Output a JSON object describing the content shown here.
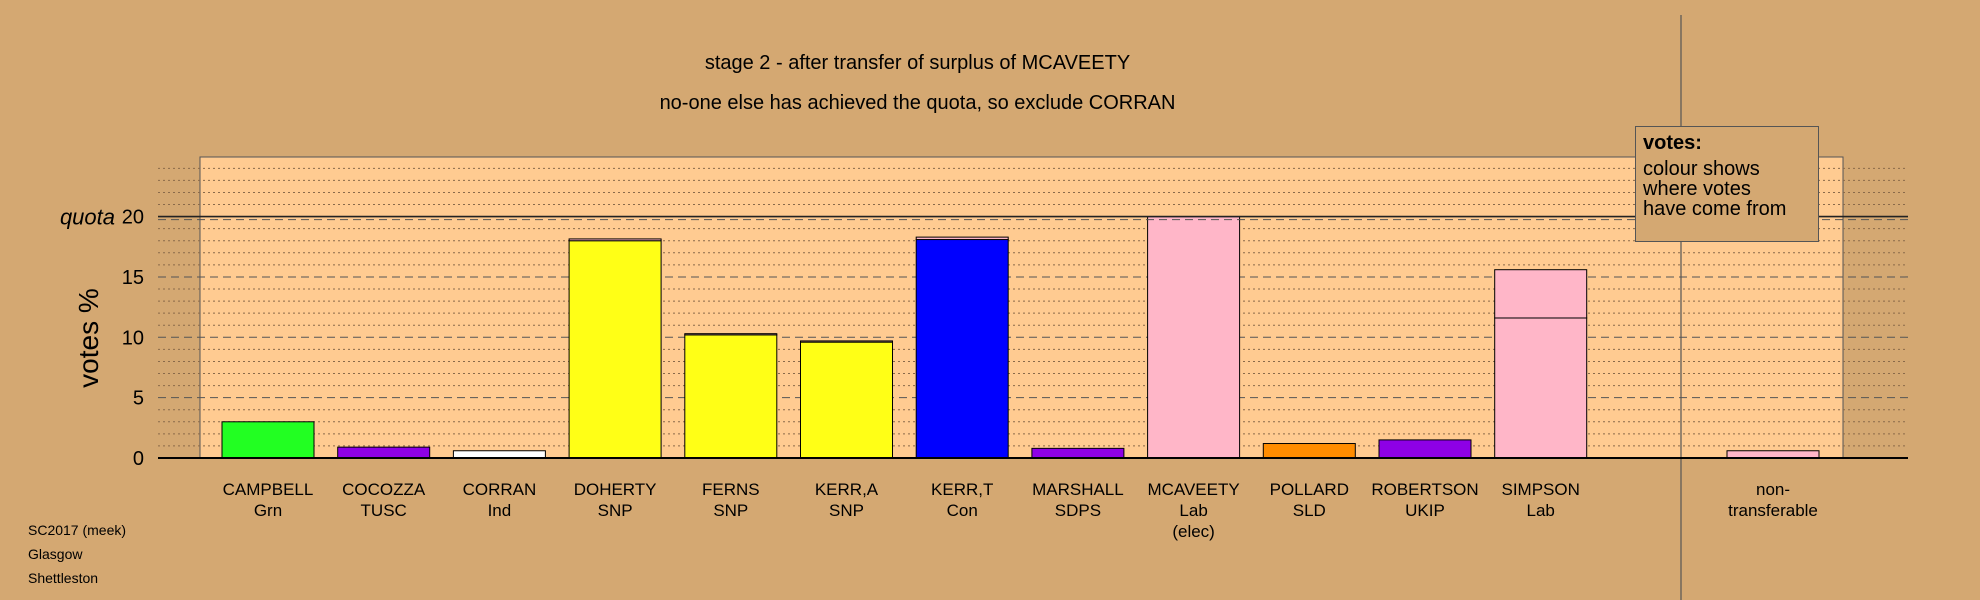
{
  "title": "stage 2 - after transfer of surplus of MCAVEETY",
  "subtitle": "no-one else has achieved the quota, so exclude CORRAN",
  "info_lines": [
    "SC2017 (meek)",
    "Glasgow",
    "Shettleston"
  ],
  "legend": {
    "title": "votes:",
    "body": "colour shows\nwhere votes\nhave come from"
  },
  "chart_data": {
    "type": "bar",
    "ylabel": "votes %",
    "ylim": [
      0,
      25
    ],
    "yticks": [
      0,
      5,
      10,
      15,
      20
    ],
    "quota": {
      "label": "quota",
      "value": 20
    },
    "candidates": [
      {
        "name": "CAMPBELL",
        "party": "Grn",
        "extra": "",
        "segments": [
          {
            "value": 3.0,
            "color": "#22FF22"
          }
        ]
      },
      {
        "name": "COCOZZA",
        "party": "TUSC",
        "extra": "",
        "segments": [
          {
            "value": 0.9,
            "color": "#8E00E6"
          }
        ]
      },
      {
        "name": "CORRAN",
        "party": "Ind",
        "extra": "",
        "segments": [
          {
            "value": 0.6,
            "color": "#FFFFFF"
          }
        ]
      },
      {
        "name": "DOHERTY",
        "party": "SNP",
        "extra": "",
        "segments": [
          {
            "value": 18.0,
            "color": "#FFFF16"
          },
          {
            "value": 0.15,
            "color": "#FFB6C8"
          }
        ]
      },
      {
        "name": "FERNS",
        "party": "SNP",
        "extra": "",
        "segments": [
          {
            "value": 10.2,
            "color": "#FFFF16"
          },
          {
            "value": 0.1,
            "color": "#FFB6C8"
          }
        ]
      },
      {
        "name": "KERR,A",
        "party": "SNP",
        "extra": "",
        "segments": [
          {
            "value": 9.6,
            "color": "#FFFF16"
          },
          {
            "value": 0.1,
            "color": "#FFB6C8"
          }
        ]
      },
      {
        "name": "KERR,T",
        "party": "Con",
        "extra": "",
        "segments": [
          {
            "value": 18.1,
            "color": "#0000FF"
          },
          {
            "value": 0.2,
            "color": "#FFB6C8"
          }
        ]
      },
      {
        "name": "MARSHALL",
        "party": "SDPS",
        "extra": "",
        "segments": [
          {
            "value": 0.8,
            "color": "#8E00E6"
          }
        ]
      },
      {
        "name": "MCAVEETY",
        "party": "Lab",
        "extra": "(elec)",
        "segments": [
          {
            "value": 20.0,
            "color": "#FFB6C8"
          }
        ]
      },
      {
        "name": "POLLARD",
        "party": "SLD",
        "extra": "",
        "segments": [
          {
            "value": 1.2,
            "color": "#FF8C00"
          }
        ]
      },
      {
        "name": "ROBERTSON",
        "party": "UKIP",
        "extra": "",
        "segments": [
          {
            "value": 1.5,
            "color": "#8E00E6"
          }
        ]
      },
      {
        "name": "SIMPSON",
        "party": "Lab",
        "extra": "",
        "segments": [
          {
            "value": 11.6,
            "color": "#FFB6C8"
          },
          {
            "value": 4.0,
            "color": "#FFB6C8"
          }
        ]
      }
    ],
    "nontransferable": {
      "name": "non-",
      "party": "transferable",
      "value": 0.6,
      "color": "#FFB6C8"
    }
  }
}
